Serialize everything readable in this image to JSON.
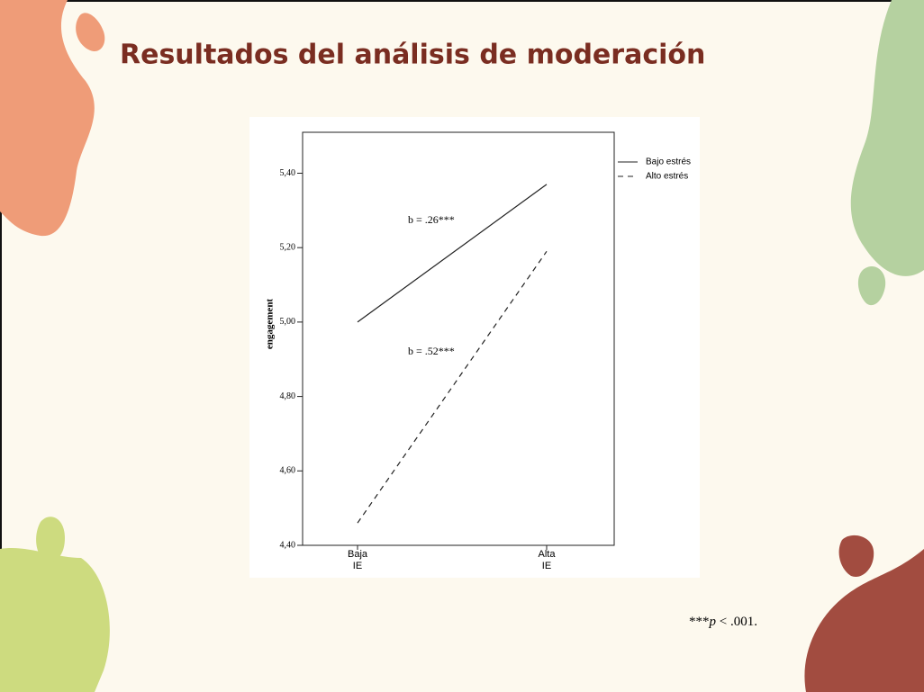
{
  "slide": {
    "title": "Resultados del análisis de moderación",
    "footnote": [
      "***",
      "p",
      " < .001."
    ]
  },
  "chart_data": {
    "type": "line",
    "y_label": "engagement",
    "categories": [
      "Baja\nIE",
      "Alta\nIE"
    ],
    "series": [
      {
        "name": "Bajo estrés",
        "color": "#222222",
        "dash": "none",
        "values": [
          5.0,
          5.37
        ]
      },
      {
        "name": "Alto estrés",
        "color": "#222222",
        "dash": "6 5",
        "values": [
          4.46,
          5.19
        ]
      }
    ],
    "annotations": [
      "b = .26***",
      "b = .52***"
    ],
    "ylim": [
      4.4,
      5.51
    ],
    "yticks": [
      {
        "value": 4.4,
        "label": "4,40"
      },
      {
        "value": 4.6,
        "label": "4,60"
      },
      {
        "value": 4.8,
        "label": "4,80"
      },
      {
        "value": 5.0,
        "label": "5,00"
      },
      {
        "value": 5.2,
        "label": "5,20"
      },
      {
        "value": 5.4,
        "label": "5,40"
      }
    ],
    "legend": "right"
  }
}
